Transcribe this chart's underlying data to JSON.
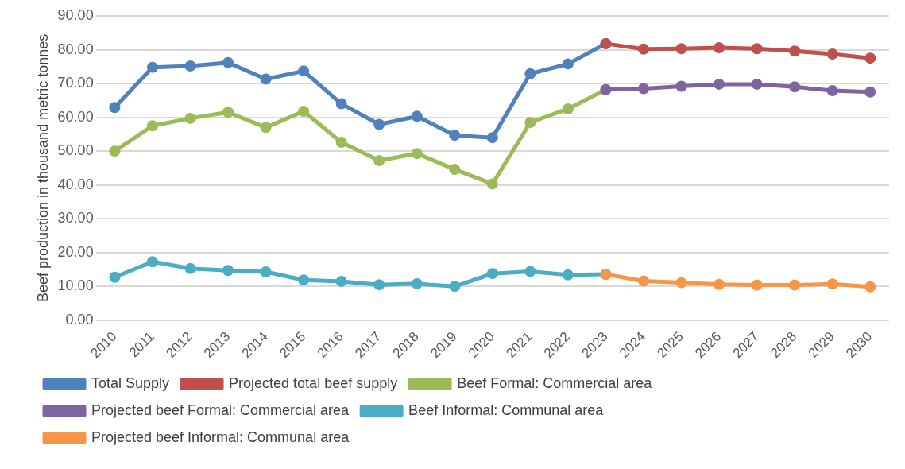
{
  "chart_data": {
    "type": "line",
    "ylabel": "Beef production in thousand metric tonnes",
    "categories": [
      "2010",
      "2011",
      "2012",
      "2013",
      "2014",
      "2015",
      "2016",
      "2017",
      "2018",
      "2019",
      "2020",
      "2021",
      "2022",
      "2023",
      "2024",
      "2025",
      "2026",
      "2027",
      "2028",
      "2029",
      "2030"
    ],
    "series": [
      {
        "name": "Total Supply",
        "color": "#4f81bd",
        "values": [
          62.9,
          74.8,
          75.2,
          76.2,
          71.3,
          73.7,
          64.0,
          57.9,
          60.3,
          54.7,
          54.0,
          72.9,
          75.8,
          81.8,
          null,
          null,
          null,
          null,
          null,
          null,
          null
        ]
      },
      {
        "name": "Projected total beef supply",
        "color": "#c0504d",
        "values": [
          null,
          null,
          null,
          null,
          null,
          null,
          null,
          null,
          null,
          null,
          null,
          null,
          null,
          81.8,
          80.2,
          80.3,
          80.6,
          80.3,
          79.6,
          78.7,
          77.5
        ]
      },
      {
        "name": "Beef Formal: Commercial area",
        "color": "#9bbb59",
        "values": [
          50.0,
          57.5,
          59.7,
          61.5,
          57.0,
          61.8,
          52.6,
          47.2,
          49.3,
          44.6,
          40.3,
          58.5,
          62.5,
          68.2,
          null,
          null,
          null,
          null,
          null,
          null,
          null
        ]
      },
      {
        "name": "Projected beef Formal: Commercial area",
        "color": "#8064a2",
        "values": [
          null,
          null,
          null,
          null,
          null,
          null,
          null,
          null,
          null,
          null,
          null,
          null,
          null,
          68.2,
          68.5,
          69.2,
          69.8,
          69.8,
          69.0,
          67.9,
          67.5
        ]
      },
      {
        "name": "Beef Informal: Communal area",
        "color": "#4bacc6",
        "values": [
          12.7,
          17.3,
          15.3,
          14.7,
          14.3,
          11.9,
          11.5,
          10.5,
          10.8,
          10.0,
          13.8,
          14.4,
          13.4,
          13.6,
          null,
          null,
          null,
          null,
          null,
          null,
          null
        ]
      },
      {
        "name": "Projected beef Informal: Communal area",
        "color": "#f79646",
        "values": [
          null,
          null,
          null,
          null,
          null,
          null,
          null,
          null,
          null,
          null,
          null,
          null,
          null,
          13.6,
          11.6,
          11.1,
          10.6,
          10.4,
          10.4,
          10.7,
          9.9
        ]
      }
    ],
    "ylim": [
      0,
      90
    ],
    "yticks": [
      {
        "value": 0,
        "label": "0.00"
      },
      {
        "value": 10,
        "label": "10.00"
      },
      {
        "value": 20,
        "label": "20.00"
      },
      {
        "value": 30,
        "label": "30.00"
      },
      {
        "value": 40,
        "label": "40.00"
      },
      {
        "value": 50,
        "label": "50.00"
      },
      {
        "value": 60,
        "label": "60.00"
      },
      {
        "value": 70,
        "label": "70.00"
      },
      {
        "value": 80,
        "label": "80.00"
      },
      {
        "value": 90,
        "label": "90.00"
      }
    ],
    "grid": "y",
    "legend": "bottom",
    "marker": "circle",
    "line_style": "solid"
  }
}
